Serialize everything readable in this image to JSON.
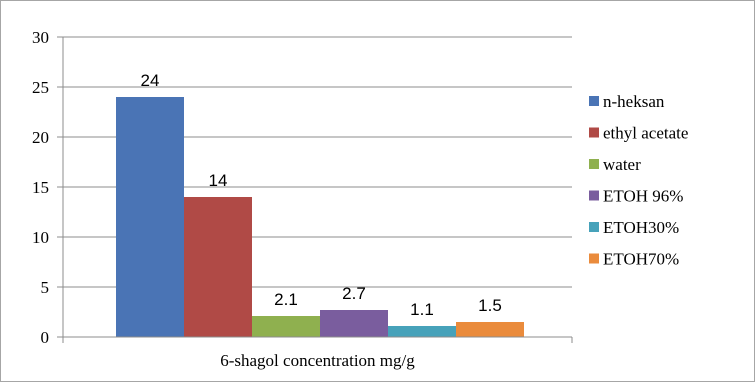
{
  "chart_data": {
    "type": "bar",
    "title": "",
    "xlabel": "6-shagol concentration mg/g",
    "ylabel": "",
    "categories": [
      "6-shagol concentration mg/g"
    ],
    "ylim": [
      0,
      30
    ],
    "yticks": [
      0,
      5,
      10,
      15,
      20,
      25,
      30
    ],
    "grid": true,
    "legend_position": "right",
    "series": [
      {
        "name": "n-heksan",
        "values": [
          24
        ],
        "color": "#4a74b5",
        "label": "24"
      },
      {
        "name": "ethyl acetate",
        "values": [
          14
        ],
        "color": "#b04a46",
        "label": "14"
      },
      {
        "name": "water",
        "values": [
          2.1
        ],
        "color": "#8fb04f",
        "label": "2.1"
      },
      {
        "name": "ETOH 96%",
        "values": [
          2.7
        ],
        "color": "#7a5d9e",
        "label": "2.7"
      },
      {
        "name": "ETOH30%",
        "values": [
          1.1
        ],
        "color": "#47a2ba",
        "label": "1.1"
      },
      {
        "name": "ETOH70%",
        "values": [
          1.5
        ],
        "color": "#ea8b3c",
        "label": "1.5"
      }
    ]
  }
}
